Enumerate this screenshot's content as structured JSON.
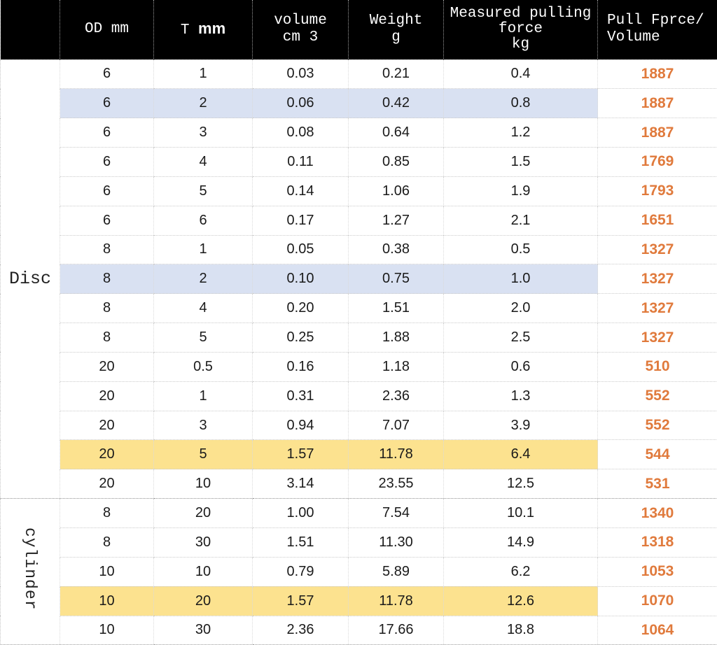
{
  "title": "Magnet pull force vs volume table",
  "colors": {
    "header_bg": "#000000",
    "header_text": "#ffffff",
    "highlight_blue": "#d9e1f2",
    "highlight_yellow": "#fce28f",
    "pull_value_orange": "#e07a3c",
    "grid_dotted_gray": "#cbcbcb"
  },
  "chart_data": {
    "type": "table",
    "columns": [
      {
        "line1": ""
      },
      {
        "line1": "OD mm"
      },
      {
        "prefix": "T ",
        "bold": "mm",
        "full": "T mm"
      },
      {
        "line1": "volume",
        "line2": "cm 3",
        "full": "volume cm 3"
      },
      {
        "line1": "Weight",
        "line2": "g",
        "full": "Weight g"
      },
      {
        "line1": "Measured pulling",
        "line2": "force",
        "line3": "kg",
        "full": "Measured pulling force kg"
      },
      {
        "line1": "Pull Fprce/",
        "line2": "Volume",
        "full": "Pull Fprce/Volume"
      }
    ],
    "groups": [
      {
        "label": "Disc",
        "vertical": false,
        "rows": [
          {
            "od": "6",
            "t": "1",
            "volume": "0.03",
            "weight": "0.21",
            "force": "0.4",
            "pull_per_volume": "1887",
            "highlight": "none"
          },
          {
            "od": "6",
            "t": "2",
            "volume": "0.06",
            "weight": "0.42",
            "force": "0.8",
            "pull_per_volume": "1887",
            "highlight": "blue"
          },
          {
            "od": "6",
            "t": "3",
            "volume": "0.08",
            "weight": "0.64",
            "force": "1.2",
            "pull_per_volume": "1887",
            "highlight": "none"
          },
          {
            "od": "6",
            "t": "4",
            "volume": "0.11",
            "weight": "0.85",
            "force": "1.5",
            "pull_per_volume": "1769",
            "highlight": "none"
          },
          {
            "od": "6",
            "t": "5",
            "volume": "0.14",
            "weight": "1.06",
            "force": "1.9",
            "pull_per_volume": "1793",
            "highlight": "none"
          },
          {
            "od": "6",
            "t": "6",
            "volume": "0.17",
            "weight": "1.27",
            "force": "2.1",
            "pull_per_volume": "1651",
            "highlight": "none"
          },
          {
            "od": "8",
            "t": "1",
            "volume": "0.05",
            "weight": "0.38",
            "force": "0.5",
            "pull_per_volume": "1327",
            "highlight": "none"
          },
          {
            "od": "8",
            "t": "2",
            "volume": "0.10",
            "weight": "0.75",
            "force": "1.0",
            "pull_per_volume": "1327",
            "highlight": "blue"
          },
          {
            "od": "8",
            "t": "4",
            "volume": "0.20",
            "weight": "1.51",
            "force": "2.0",
            "pull_per_volume": "1327",
            "highlight": "none"
          },
          {
            "od": "8",
            "t": "5",
            "volume": "0.25",
            "weight": "1.88",
            "force": "2.5",
            "pull_per_volume": "1327",
            "highlight": "none"
          },
          {
            "od": "20",
            "t": "0.5",
            "volume": "0.16",
            "weight": "1.18",
            "force": "0.6",
            "pull_per_volume": "510",
            "highlight": "none"
          },
          {
            "od": "20",
            "t": "1",
            "volume": "0.31",
            "weight": "2.36",
            "force": "1.3",
            "pull_per_volume": "552",
            "highlight": "none"
          },
          {
            "od": "20",
            "t": "3",
            "volume": "0.94",
            "weight": "7.07",
            "force": "3.9",
            "pull_per_volume": "552",
            "highlight": "none"
          },
          {
            "od": "20",
            "t": "5",
            "volume": "1.57",
            "weight": "11.78",
            "force": "6.4",
            "pull_per_volume": "544",
            "highlight": "yellow"
          },
          {
            "od": "20",
            "t": "10",
            "volume": "3.14",
            "weight": "23.55",
            "force": "12.5",
            "pull_per_volume": "531",
            "highlight": "none"
          }
        ]
      },
      {
        "label": "cylinder",
        "vertical": true,
        "rows": [
          {
            "od": "8",
            "t": "20",
            "volume": "1.00",
            "weight": "7.54",
            "force": "10.1",
            "pull_per_volume": "1340",
            "highlight": "none"
          },
          {
            "od": "8",
            "t": "30",
            "volume": "1.51",
            "weight": "11.30",
            "force": "14.9",
            "pull_per_volume": "1318",
            "highlight": "none"
          },
          {
            "od": "10",
            "t": "10",
            "volume": "0.79",
            "weight": "5.89",
            "force": "6.2",
            "pull_per_volume": "1053",
            "highlight": "none"
          },
          {
            "od": "10",
            "t": "20",
            "volume": "1.57",
            "weight": "11.78",
            "force": "12.6",
            "pull_per_volume": "1070",
            "highlight": "yellow"
          },
          {
            "od": "10",
            "t": "30",
            "volume": "2.36",
            "weight": "17.66",
            "force": "18.8",
            "pull_per_volume": "1064",
            "highlight": "none"
          }
        ]
      }
    ]
  }
}
